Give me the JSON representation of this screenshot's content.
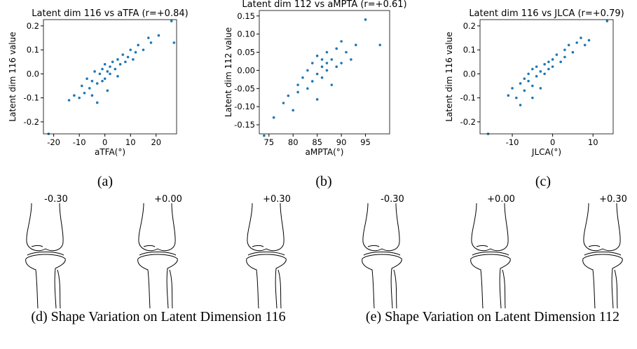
{
  "chart_data": [
    {
      "type": "scatter",
      "title": "Latent dim 116 vs aTFA (r=+0.84)",
      "xlabel": "aTFA(°)",
      "ylabel": "Latent dim 116 value",
      "color": "#1f77b4",
      "xlim": [
        -24,
        28
      ],
      "ylim": [
        -0.25,
        0.226
      ],
      "xticks": [
        -20,
        -10,
        0,
        10,
        20
      ],
      "yticks": [
        -0.2,
        -0.1,
        {
          "value": 0,
          "label": "0.0"
        },
        0.1,
        0.2
      ],
      "x": [
        -22,
        26,
        27,
        -14,
        -12,
        -10,
        -9,
        -8,
        -7,
        -6,
        -5,
        -5,
        -4,
        -3,
        -3,
        -2,
        -1,
        -1,
        0,
        0,
        1,
        1,
        2,
        2,
        3,
        4,
        5,
        5,
        6,
        7,
        8,
        9,
        10,
        11,
        12,
        13,
        15,
        17,
        18,
        21
      ],
      "values": [
        -0.25,
        0.22,
        0.13,
        -0.11,
        -0.09,
        -0.1,
        -0.05,
        -0.08,
        -0.02,
        -0.06,
        -0.03,
        -0.09,
        0.01,
        -0.04,
        -0.12,
        0.0,
        -0.03,
        0.02,
        -0.02,
        0.04,
        0.01,
        -0.07,
        0.03,
        0.0,
        0.05,
        0.02,
        0.06,
        -0.01,
        0.04,
        0.08,
        0.05,
        0.07,
        0.1,
        0.06,
        0.09,
        0.12,
        0.1,
        0.15,
        0.13,
        0.16
      ]
    },
    {
      "type": "scatter",
      "title": "Latent dim 112 vs aMPTA (r=+0.61)",
      "xlabel": "aMPTA(°)",
      "ylabel": "Latent dim 112 value",
      "color": "#1f77b4",
      "xlim": [
        73,
        100
      ],
      "ylim": [
        -0.175,
        0.165
      ],
      "xticks": [
        75,
        80,
        85,
        90,
        95
      ],
      "yticks": [
        -0.15,
        {
          "value": -0.1,
          "label": "-0.10"
        },
        -0.05,
        {
          "value": 0,
          "label": "0.00"
        },
        0.05,
        {
          "value": 0.1,
          "label": "0.10"
        },
        0.15
      ],
      "x": [
        74,
        76,
        78,
        79,
        80,
        81,
        81,
        82,
        83,
        83,
        84,
        84,
        85,
        85,
        85,
        86,
        86,
        86,
        87,
        87,
        87,
        88,
        88,
        89,
        89,
        90,
        90,
        91,
        92,
        93,
        95,
        98
      ],
      "values": [
        -0.18,
        -0.13,
        -0.09,
        -0.07,
        -0.11,
        -0.04,
        -0.06,
        -0.02,
        -0.05,
        0.0,
        -0.03,
        0.02,
        -0.01,
        0.04,
        -0.08,
        0.01,
        0.03,
        -0.02,
        0.0,
        0.05,
        0.02,
        0.03,
        -0.04,
        0.06,
        0.01,
        0.02,
        0.08,
        0.05,
        0.03,
        0.07,
        0.14,
        0.07
      ]
    },
    {
      "type": "scatter",
      "title": "Latent dim 116 vs JLCA (r=+0.79)",
      "xlabel": "JLCA(°)",
      "ylabel": "Latent dim 116 value",
      "color": "#1f77b4",
      "xlim": [
        -18,
        15
      ],
      "ylim": [
        -0.25,
        0.226
      ],
      "xticks": [
        -10,
        0,
        10
      ],
      "yticks": [
        -0.2,
        -0.1,
        {
          "value": 0,
          "label": "0.0"
        },
        0.1,
        0.2
      ],
      "x": [
        -16,
        -11,
        -10,
        -9,
        -8,
        -8,
        -7,
        -7,
        -6,
        -6,
        -5,
        -5,
        -5,
        -4,
        -4,
        -3,
        -3,
        -2,
        -2,
        -1,
        -1,
        0,
        0,
        1,
        2,
        3,
        3,
        4,
        5,
        6,
        7,
        8,
        9,
        13.5
      ],
      "values": [
        -0.25,
        -0.09,
        -0.06,
        -0.1,
        -0.04,
        -0.13,
        -0.02,
        -0.07,
        -0.03,
        0.0,
        -0.05,
        0.02,
        -0.1,
        -0.01,
        0.03,
        0.01,
        -0.06,
        0.04,
        0.0,
        0.05,
        0.02,
        0.06,
        0.03,
        0.08,
        0.05,
        0.1,
        0.07,
        0.12,
        0.09,
        0.13,
        0.15,
        0.12,
        0.14,
        0.22
      ]
    }
  ],
  "captions": [
    "(a)",
    "(b)",
    "(c)"
  ],
  "shape_panels": [
    {
      "caption": "(d) Shape Variation on Latent Dimension 116",
      "labels": [
        "-0.30",
        "+0.00",
        "+0.30"
      ]
    },
    {
      "caption": "(e) Shape Variation on Latent Dimension 112",
      "labels": [
        "-0.30",
        "+0.00",
        "+0.30"
      ]
    }
  ]
}
